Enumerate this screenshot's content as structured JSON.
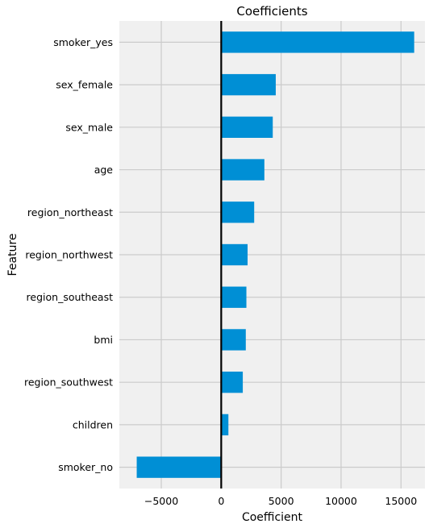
{
  "colors": {
    "bar": "#008fd5",
    "plot_background": "#f0f0f0",
    "grid": "#cbcbcb",
    "zero_line": "#000000"
  },
  "chart_data": {
    "type": "bar",
    "orientation": "horizontal",
    "title": "Coefficients",
    "xlabel": "Coefficient",
    "ylabel": "Feature",
    "categories": [
      "smoker_yes",
      "sex_female",
      "sex_male",
      "age",
      "region_northeast",
      "region_northwest",
      "region_southeast",
      "bmi",
      "region_southwest",
      "children",
      "smoker_no"
    ],
    "values": [
      16100,
      4550,
      4300,
      3600,
      2750,
      2200,
      2100,
      2050,
      1800,
      600,
      -7050
    ],
    "xlim": [
      -8500,
      17000
    ],
    "xticks": [
      -5000,
      0,
      5000,
      10000,
      15000
    ],
    "xtick_labels": [
      "−5000",
      "0",
      "5000",
      "10000",
      "15000"
    ],
    "grid": true,
    "zero_line": true
  }
}
